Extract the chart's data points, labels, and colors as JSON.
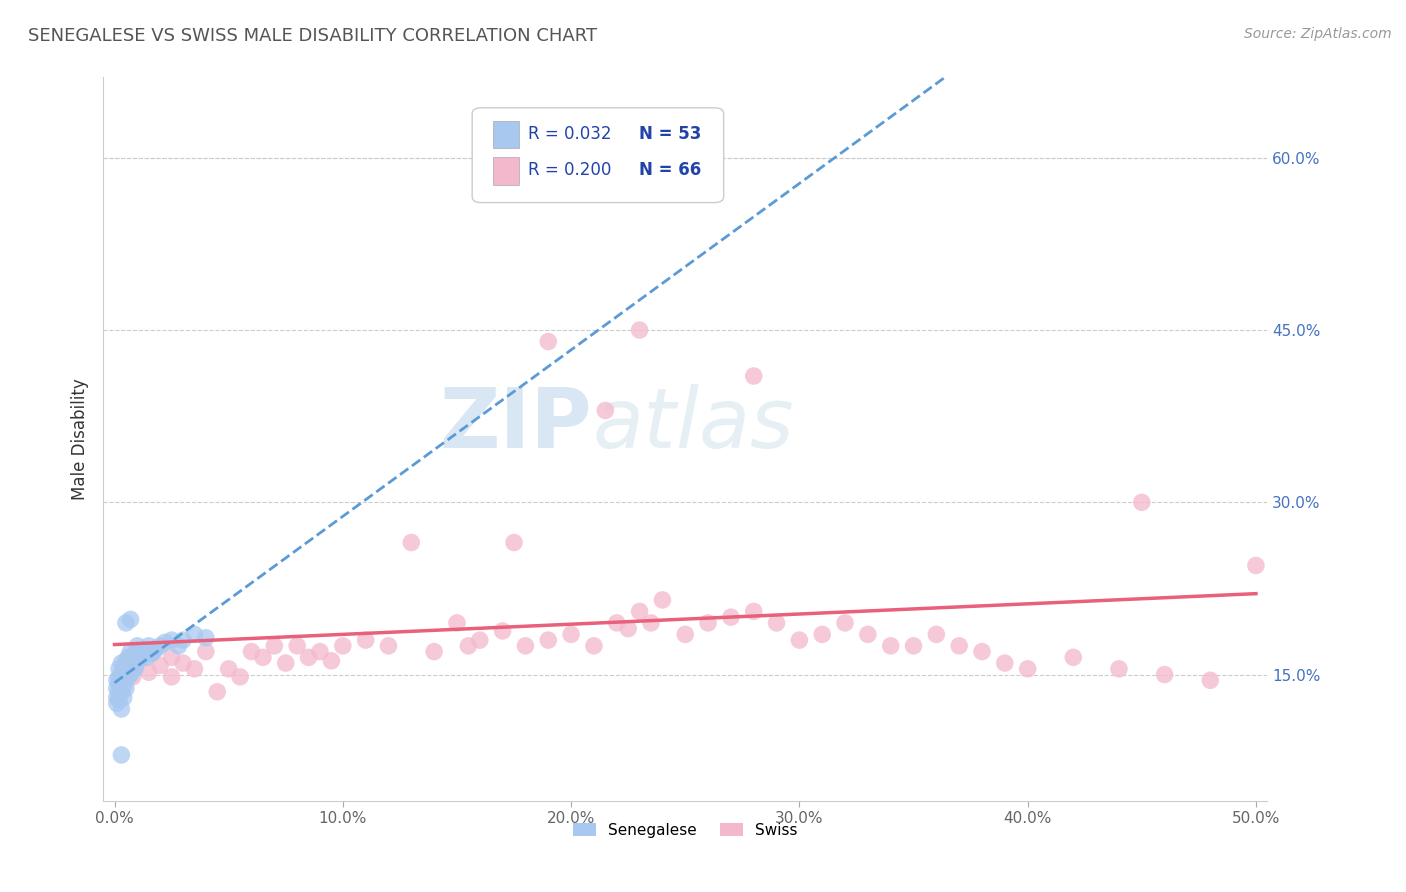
{
  "title": "SENEGALESE VS SWISS MALE DISABILITY CORRELATION CHART",
  "source": "Source: ZipAtlas.com",
  "xlabel": "",
  "ylabel": "Male Disability",
  "xlim": [
    -0.005,
    0.505
  ],
  "ylim": [
    0.04,
    0.67
  ],
  "xtick_labels": [
    "0.0%",
    "10.0%",
    "20.0%",
    "30.0%",
    "40.0%",
    "50.0%"
  ],
  "xtick_vals": [
    0.0,
    0.1,
    0.2,
    0.3,
    0.4,
    0.5
  ],
  "ytick_labels_right": [
    "15.0%",
    "30.0%",
    "45.0%",
    "60.0%"
  ],
  "ytick_vals_right": [
    0.15,
    0.3,
    0.45,
    0.6
  ],
  "legend_r1": "R = 0.032",
  "legend_n1": "N = 53",
  "legend_r2": "R = 0.200",
  "legend_n2": "N = 66",
  "color_senegalese": "#a8c8f0",
  "color_swiss": "#f4b8cc",
  "color_senegalese_line": "#5b9bd5",
  "color_swiss_line": "#e8607a",
  "background": "#ffffff",
  "watermark_zip": "ZIP",
  "watermark_atlas": "atlas",
  "senegalese_x": [
    0.001,
    0.001,
    0.001,
    0.001,
    0.002,
    0.002,
    0.002,
    0.002,
    0.002,
    0.003,
    0.003,
    0.003,
    0.003,
    0.003,
    0.003,
    0.004,
    0.004,
    0.004,
    0.004,
    0.005,
    0.005,
    0.005,
    0.005,
    0.006,
    0.006,
    0.006,
    0.007,
    0.007,
    0.007,
    0.008,
    0.008,
    0.009,
    0.009,
    0.01,
    0.01,
    0.011,
    0.012,
    0.013,
    0.014,
    0.015,
    0.016,
    0.017,
    0.018,
    0.02,
    0.022,
    0.025,
    0.028,
    0.03,
    0.035,
    0.04,
    0.005,
    0.007,
    0.003
  ],
  "senegalese_y": [
    0.145,
    0.138,
    0.13,
    0.125,
    0.148,
    0.142,
    0.135,
    0.128,
    0.155,
    0.15,
    0.145,
    0.14,
    0.135,
    0.16,
    0.12,
    0.155,
    0.148,
    0.14,
    0.13,
    0.162,
    0.155,
    0.148,
    0.138,
    0.165,
    0.158,
    0.148,
    0.17,
    0.16,
    0.15,
    0.165,
    0.155,
    0.168,
    0.155,
    0.162,
    0.175,
    0.168,
    0.165,
    0.17,
    0.165,
    0.175,
    0.168,
    0.17,
    0.172,
    0.175,
    0.178,
    0.18,
    0.175,
    0.18,
    0.185,
    0.182,
    0.195,
    0.198,
    0.08
  ],
  "swiss_x": [
    0.005,
    0.008,
    0.01,
    0.015,
    0.02,
    0.025,
    0.025,
    0.03,
    0.035,
    0.04,
    0.045,
    0.05,
    0.055,
    0.06,
    0.065,
    0.07,
    0.075,
    0.08,
    0.085,
    0.09,
    0.095,
    0.1,
    0.11,
    0.12,
    0.13,
    0.14,
    0.15,
    0.155,
    0.16,
    0.17,
    0.175,
    0.18,
    0.19,
    0.2,
    0.21,
    0.215,
    0.22,
    0.225,
    0.23,
    0.235,
    0.24,
    0.25,
    0.26,
    0.27,
    0.28,
    0.29,
    0.3,
    0.31,
    0.32,
    0.33,
    0.34,
    0.35,
    0.36,
    0.37,
    0.38,
    0.39,
    0.4,
    0.42,
    0.44,
    0.46,
    0.48,
    0.5,
    0.19,
    0.23,
    0.28,
    0.45
  ],
  "swiss_y": [
    0.155,
    0.148,
    0.16,
    0.152,
    0.158,
    0.148,
    0.165,
    0.16,
    0.155,
    0.17,
    0.135,
    0.155,
    0.148,
    0.17,
    0.165,
    0.175,
    0.16,
    0.175,
    0.165,
    0.17,
    0.162,
    0.175,
    0.18,
    0.175,
    0.265,
    0.17,
    0.195,
    0.175,
    0.18,
    0.188,
    0.265,
    0.175,
    0.18,
    0.185,
    0.175,
    0.38,
    0.195,
    0.19,
    0.205,
    0.195,
    0.215,
    0.185,
    0.195,
    0.2,
    0.205,
    0.195,
    0.18,
    0.185,
    0.195,
    0.185,
    0.175,
    0.175,
    0.185,
    0.175,
    0.17,
    0.16,
    0.155,
    0.165,
    0.155,
    0.15,
    0.145,
    0.245,
    0.44,
    0.45,
    0.41,
    0.3
  ]
}
